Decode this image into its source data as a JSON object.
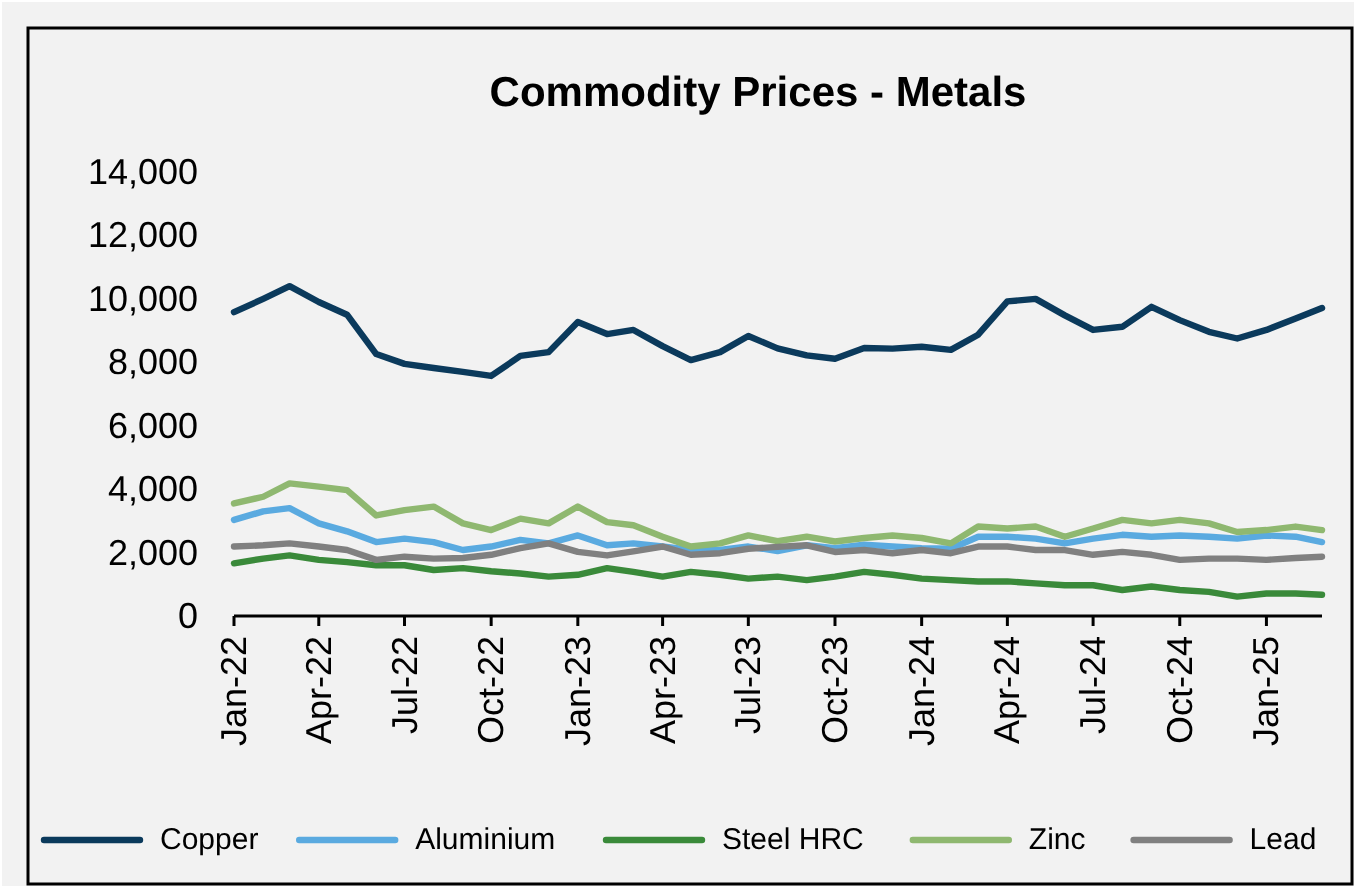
{
  "chart_data": {
    "type": "line",
    "title": "Commodity Prices - Metals",
    "x": [
      "2022-01",
      "2022-02",
      "2022-03",
      "2022-04",
      "2022-05",
      "2022-06",
      "2022-07",
      "2022-08",
      "2022-09",
      "2022-10",
      "2022-11",
      "2022-12",
      "2023-01",
      "2023-02",
      "2023-03",
      "2023-04",
      "2023-05",
      "2023-06",
      "2023-07",
      "2023-08",
      "2023-09",
      "2023-10",
      "2023-11",
      "2023-12",
      "2024-01",
      "2024-02",
      "2024-03",
      "2024-04",
      "2024-05",
      "2024-06",
      "2024-07",
      "2024-08",
      "2024-09",
      "2024-10",
      "2024-11",
      "2024-12",
      "2025-01",
      "2025-02",
      "2025-03"
    ],
    "series": [
      {
        "name": "Copper",
        "color": "#0b3a5c",
        "values": [
          9580,
          10000,
          10400,
          9900,
          9500,
          8260,
          7950,
          7820,
          7700,
          7570,
          8200,
          8320,
          9270,
          8890,
          9020,
          8510,
          8070,
          8320,
          8830,
          8440,
          8220,
          8110,
          8450,
          8430,
          8490,
          8390,
          8870,
          9920,
          10000,
          9480,
          9020,
          9120,
          9750,
          9330,
          8960,
          8750,
          9020,
          9380,
          9710
        ]
      },
      {
        "name": "Aluminium",
        "color": "#5aaae0",
        "values": [
          3030,
          3300,
          3400,
          2920,
          2670,
          2330,
          2440,
          2330,
          2080,
          2190,
          2400,
          2290,
          2540,
          2230,
          2290,
          2190,
          2080,
          2080,
          2190,
          2050,
          2230,
          2140,
          2250,
          2190,
          2140,
          2120,
          2500,
          2500,
          2440,
          2290,
          2440,
          2560,
          2500,
          2540,
          2500,
          2440,
          2540,
          2500,
          2330
        ]
      },
      {
        "name": "Steel HRC",
        "color": "#3a8a3a",
        "values": [
          1660,
          1810,
          1910,
          1770,
          1700,
          1600,
          1600,
          1450,
          1510,
          1410,
          1340,
          1240,
          1300,
          1510,
          1390,
          1240,
          1390,
          1300,
          1180,
          1240,
          1130,
          1240,
          1390,
          1300,
          1180,
          1130,
          1090,
          1090,
          1030,
          970,
          970,
          820,
          930,
          820,
          760,
          610,
          710,
          710,
          670
        ]
      },
      {
        "name": "Zinc",
        "color": "#8fb870",
        "values": [
          3550,
          3760,
          4180,
          4080,
          3970,
          3170,
          3340,
          3450,
          2920,
          2710,
          3070,
          2920,
          3450,
          2960,
          2860,
          2500,
          2190,
          2290,
          2540,
          2360,
          2500,
          2350,
          2460,
          2540,
          2460,
          2290,
          2820,
          2760,
          2820,
          2500,
          2760,
          3030,
          2920,
          3030,
          2920,
          2650,
          2710,
          2820,
          2710
        ]
      },
      {
        "name": "Lead",
        "color": "#808080",
        "values": [
          2190,
          2230,
          2290,
          2190,
          2080,
          1770,
          1870,
          1810,
          1830,
          1930,
          2140,
          2290,
          2020,
          1910,
          2040,
          2190,
          1930,
          1980,
          2120,
          2180,
          2230,
          2020,
          2080,
          1980,
          2080,
          1980,
          2190,
          2190,
          2080,
          2080,
          1930,
          2020,
          1930,
          1770,
          1810,
          1810,
          1770,
          1830,
          1870
        ]
      }
    ],
    "xlim": [
      "2022-01",
      "2025-03"
    ],
    "xticks": [
      {
        "value": "2022-01",
        "label": "Jan-22"
      },
      {
        "value": "2022-04",
        "label": "Apr-22"
      },
      {
        "value": "2022-07",
        "label": "Jul-22"
      },
      {
        "value": "2022-10",
        "label": "Oct-22"
      },
      {
        "value": "2023-01",
        "label": "Jan-23"
      },
      {
        "value": "2023-04",
        "label": "Apr-23"
      },
      {
        "value": "2023-07",
        "label": "Jul-23"
      },
      {
        "value": "2023-10",
        "label": "Oct-23"
      },
      {
        "value": "2024-01",
        "label": "Jan-24"
      },
      {
        "value": "2024-04",
        "label": "Apr-24"
      },
      {
        "value": "2024-07",
        "label": "Jul-24"
      },
      {
        "value": "2024-10",
        "label": "Oct-24"
      },
      {
        "value": "2025-01",
        "label": "Jan-25"
      }
    ],
    "ylim": [
      0,
      14000
    ],
    "yticks": [
      {
        "value": 0,
        "label": "0"
      },
      {
        "value": 2000,
        "label": "2,000"
      },
      {
        "value": 4000,
        "label": "4,000"
      },
      {
        "value": 6000,
        "label": "6,000"
      },
      {
        "value": 8000,
        "label": "8,000"
      },
      {
        "value": 10000,
        "label": "10,000"
      },
      {
        "value": 12000,
        "label": "12,000"
      },
      {
        "value": 14000,
        "label": "14,000"
      }
    ],
    "grid": false,
    "legend": "bottom",
    "marker": "none",
    "line_style": "solid"
  }
}
